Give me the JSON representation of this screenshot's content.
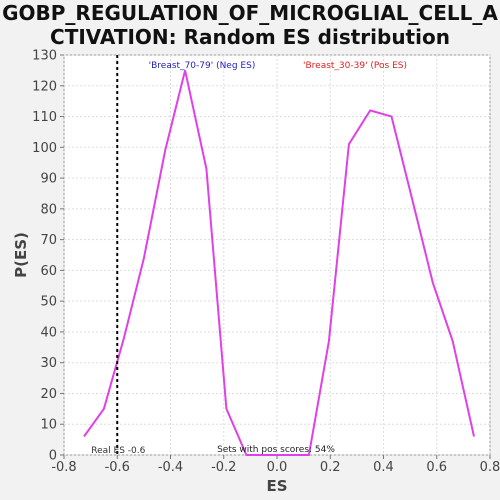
{
  "title": {
    "line1": "GOBP_REGULATION_OF_MICROGLIAL_CELL_A",
    "line2": "CTIVATION: Random ES distribution"
  },
  "colors": {
    "curve": "#e040e8",
    "neg_label": "#2222bb",
    "pos_label": "#dd2222",
    "real_es_line": "#000000",
    "plot_bg": "#ffffff",
    "grid": "#dddddd"
  },
  "chart_data": {
    "type": "line",
    "xlabel": "ES",
    "ylabel": "P(ES)",
    "xlim": [
      -0.8,
      0.8
    ],
    "ylim": [
      0,
      130
    ],
    "xticks": [
      "-0.8",
      "-0.6",
      "-0.4",
      "-0.2",
      "0.0",
      "0.2",
      "0.4",
      "0.6",
      "0.8"
    ],
    "yticks": [
      "0",
      "10",
      "20",
      "30",
      "40",
      "50",
      "60",
      "70",
      "80",
      "90",
      "100",
      "110",
      "120",
      "130"
    ],
    "grid": true,
    "series": [
      {
        "x": [
          -0.725,
          -0.65,
          -0.575,
          -0.5,
          -0.42,
          -0.345,
          -0.265,
          -0.19,
          -0.115,
          -0.035,
          0.04,
          0.12,
          0.195,
          0.27,
          0.35,
          0.43,
          0.505,
          0.585,
          0.66,
          0.74
        ],
        "y": [
          6,
          15,
          38,
          64,
          99,
          125,
          93,
          15,
          0,
          0,
          0,
          0,
          37,
          101,
          112,
          110,
          84,
          56,
          37,
          6
        ]
      }
    ],
    "real_es": {
      "x": -0.6,
      "label": "Real ES -0.6"
    },
    "annotations": {
      "neg": "'Breast_70-79' (Neg ES)",
      "pos": "'Breast_30-39' (Pos ES)",
      "sets_pos": "Sets with pos scores: 54%"
    }
  }
}
